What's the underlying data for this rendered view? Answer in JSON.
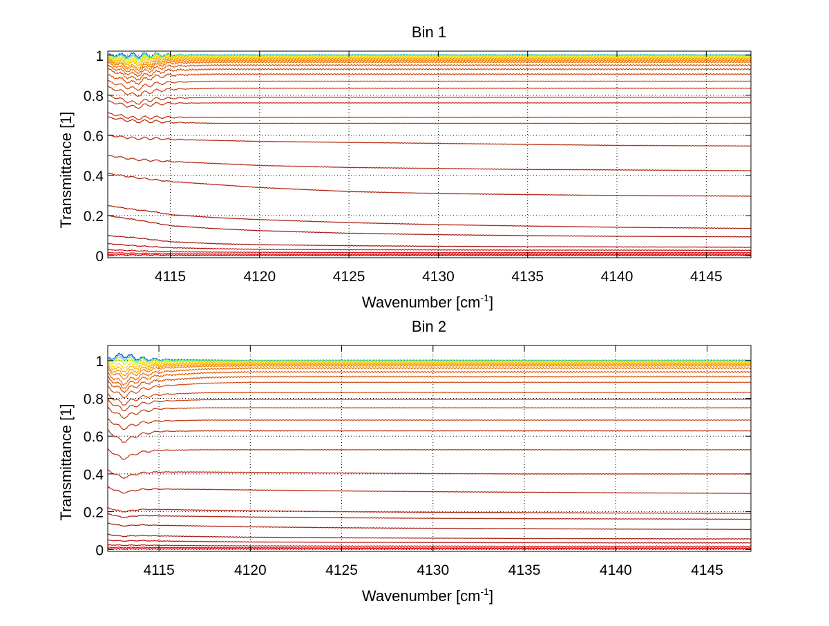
{
  "chart_data": [
    {
      "type": "line",
      "title": "Bin 1",
      "xlabel": "Wavenumber [cm-1]",
      "xlabel_main": "Wavenumber [cm",
      "xlabel_sup": "-1",
      "xlabel_end": "]",
      "ylabel": "Transmittance [1]",
      "xlim": [
        4111.5,
        4147.5
      ],
      "ylim": [
        -0.01,
        1.02
      ],
      "xticks": [
        4115,
        4120,
        4125,
        4130,
        4135,
        4140,
        4145
      ],
      "yticks": [
        0,
        0.2,
        0.4,
        0.6,
        0.8,
        1
      ],
      "xtick_labels": [
        "4115",
        "4120",
        "4125",
        "4130",
        "4135",
        "4140",
        "4145"
      ],
      "ytick_labels": [
        "0",
        "0.2",
        "0.4",
        "0.6",
        "0.8",
        "1"
      ],
      "grid": true,
      "grid_style": "dotted",
      "absorption_center": 4113.4,
      "x": [
        4111.5,
        4113,
        4114,
        4115,
        4117.5,
        4120,
        4125,
        4130,
        4135,
        4140,
        4145,
        4147.5
      ],
      "series": [
        {
          "color": "#1a3fd6",
          "values": [
            1.0,
            1.0,
            1.0,
            1.0,
            1.0,
            1.0,
            1.0,
            1.0,
            1.0,
            1.0,
            1.0,
            1.0
          ]
        },
        {
          "color": "#2fd0ff",
          "values": [
            1.0,
            0.99,
            1.0,
            1.0,
            1.0,
            1.0,
            1.0,
            1.0,
            1.0,
            1.0,
            1.0,
            1.0
          ]
        },
        {
          "color": "#7cff4a",
          "values": [
            0.995,
            0.985,
            0.995,
            0.998,
            0.998,
            0.998,
            0.998,
            0.998,
            0.998,
            0.998,
            0.998,
            0.998
          ]
        },
        {
          "color": "#d8f000",
          "values": [
            0.99,
            0.975,
            0.99,
            0.995,
            0.995,
            0.995,
            0.995,
            0.995,
            0.995,
            0.995,
            0.995,
            0.995
          ]
        },
        {
          "color": "#ffd200",
          "values": [
            0.985,
            0.965,
            0.985,
            0.99,
            0.99,
            0.99,
            0.99,
            0.99,
            0.99,
            0.99,
            0.99,
            0.99
          ]
        },
        {
          "color": "#ffb400",
          "values": [
            0.98,
            0.955,
            0.975,
            0.985,
            0.985,
            0.985,
            0.985,
            0.985,
            0.985,
            0.985,
            0.985,
            0.985
          ]
        },
        {
          "color": "#fa9a00",
          "values": [
            0.975,
            0.94,
            0.965,
            0.978,
            0.98,
            0.98,
            0.98,
            0.98,
            0.98,
            0.98,
            0.98,
            0.98
          ]
        },
        {
          "color": "#f08000",
          "values": [
            0.97,
            0.93,
            0.955,
            0.97,
            0.973,
            0.973,
            0.973,
            0.973,
            0.973,
            0.973,
            0.973,
            0.973
          ]
        },
        {
          "color": "#e86a00",
          "values": [
            0.96,
            0.915,
            0.945,
            0.96,
            0.965,
            0.965,
            0.965,
            0.965,
            0.965,
            0.965,
            0.965,
            0.965
          ]
        },
        {
          "color": "#e05a05",
          "values": [
            0.945,
            0.9,
            0.93,
            0.945,
            0.95,
            0.95,
            0.95,
            0.95,
            0.95,
            0.95,
            0.95,
            0.95
          ]
        },
        {
          "color": "#d85008",
          "values": [
            0.93,
            0.88,
            0.91,
            0.925,
            0.93,
            0.93,
            0.93,
            0.93,
            0.93,
            0.93,
            0.93,
            0.93
          ]
        },
        {
          "color": "#d2480a",
          "values": [
            0.9,
            0.86,
            0.89,
            0.9,
            0.905,
            0.905,
            0.905,
            0.905,
            0.905,
            0.905,
            0.905,
            0.905
          ]
        },
        {
          "color": "#cc420c",
          "values": [
            0.87,
            0.83,
            0.855,
            0.865,
            0.87,
            0.87,
            0.87,
            0.87,
            0.87,
            0.87,
            0.87,
            0.87
          ]
        },
        {
          "color": "#c83c0c",
          "values": [
            0.84,
            0.8,
            0.82,
            0.83,
            0.835,
            0.835,
            0.835,
            0.835,
            0.835,
            0.835,
            0.835,
            0.835
          ]
        },
        {
          "color": "#c4380c",
          "values": [
            0.8,
            0.76,
            0.78,
            0.785,
            0.79,
            0.79,
            0.79,
            0.79,
            0.79,
            0.79,
            0.79,
            0.79
          ]
        },
        {
          "color": "#c0340c",
          "values": [
            0.77,
            0.74,
            0.755,
            0.76,
            0.762,
            0.762,
            0.762,
            0.762,
            0.762,
            0.762,
            0.762,
            0.762
          ]
        },
        {
          "color": "#bc300c",
          "values": [
            0.71,
            0.685,
            0.69,
            0.69,
            0.69,
            0.69,
            0.69,
            0.69,
            0.69,
            0.69,
            0.69,
            0.69
          ]
        },
        {
          "color": "#b82c0c",
          "values": [
            0.69,
            0.67,
            0.67,
            0.665,
            0.66,
            0.66,
            0.66,
            0.66,
            0.66,
            0.66,
            0.66,
            0.66
          ]
        },
        {
          "color": "#b4280c",
          "values": [
            0.6,
            0.585,
            0.585,
            0.58,
            0.575,
            0.57,
            0.565,
            0.56,
            0.555,
            0.55,
            0.548,
            0.547
          ]
        },
        {
          "color": "#b0240c",
          "values": [
            0.5,
            0.48,
            0.475,
            0.47,
            0.46,
            0.45,
            0.44,
            0.435,
            0.43,
            0.428,
            0.425,
            0.424
          ]
        },
        {
          "color": "#ac200c",
          "values": [
            0.41,
            0.39,
            0.38,
            0.37,
            0.355,
            0.34,
            0.32,
            0.31,
            0.305,
            0.3,
            0.298,
            0.297
          ]
        },
        {
          "color": "#a81c0c",
          "values": [
            0.25,
            0.23,
            0.22,
            0.205,
            0.19,
            0.18,
            0.165,
            0.155,
            0.148,
            0.142,
            0.138,
            0.136
          ]
        },
        {
          "color": "#a4180c",
          "values": [
            0.2,
            0.18,
            0.165,
            0.15,
            0.135,
            0.125,
            0.112,
            0.105,
            0.1,
            0.097,
            0.095,
            0.094
          ]
        },
        {
          "color": "#a0140c",
          "values": [
            0.1,
            0.09,
            0.08,
            0.07,
            0.06,
            0.055,
            0.05,
            0.047,
            0.045,
            0.044,
            0.043,
            0.042
          ]
        },
        {
          "color": "#b8100c",
          "values": [
            0.06,
            0.05,
            0.045,
            0.04,
            0.035,
            0.032,
            0.03,
            0.029,
            0.028,
            0.028,
            0.027,
            0.027
          ]
        },
        {
          "color": "#cc0c0c",
          "values": [
            0.03,
            0.025,
            0.022,
            0.02,
            0.018,
            0.017,
            0.016,
            0.015,
            0.015,
            0.015,
            0.015,
            0.015
          ]
        },
        {
          "color": "#d8080c",
          "values": [
            0.015,
            0.012,
            0.011,
            0.01,
            0.009,
            0.008,
            0.008,
            0.008,
            0.008,
            0.008,
            0.008,
            0.008
          ]
        },
        {
          "color": "#e0040c",
          "values": [
            0.005,
            0.004,
            0.004,
            0.003,
            0.003,
            0.003,
            0.003,
            0.003,
            0.003,
            0.003,
            0.003,
            0.003
          ]
        }
      ]
    },
    {
      "type": "line",
      "title": "Bin 2",
      "xlabel": "Wavenumber [cm-1]",
      "xlabel_main": "Wavenumber [cm",
      "xlabel_sup": "-1",
      "xlabel_end": "]",
      "ylabel": "Transmittance [1]",
      "xlim": [
        4112.2,
        4147.4
      ],
      "ylim": [
        -0.01,
        1.08
      ],
      "xticks": [
        4115,
        4120,
        4125,
        4130,
        4135,
        4140,
        4145
      ],
      "yticks": [
        0,
        0.2,
        0.4,
        0.6,
        0.8,
        1
      ],
      "xtick_labels": [
        "4115",
        "4120",
        "4125",
        "4130",
        "4135",
        "4140",
        "4145"
      ],
      "ytick_labels": [
        "0",
        "0.2",
        "0.4",
        "0.6",
        "0.8",
        "1"
      ],
      "grid": true,
      "grid_style": "dotted",
      "absorption_center": 4113.3,
      "x": [
        4112.2,
        4113,
        4114,
        4115,
        4117.5,
        4120,
        4125,
        4130,
        4135,
        4140,
        4145,
        4147.4
      ],
      "series": [
        {
          "color": "#1a3fd6",
          "values": [
            1.01,
            1.03,
            1.01,
            1.005,
            1.002,
            1.0,
            1.0,
            1.0,
            1.0,
            1.0,
            1.0,
            1.0
          ]
        },
        {
          "color": "#2fd0ff",
          "values": [
            1.005,
            1.02,
            1.005,
            1.003,
            1.001,
            1.0,
            1.0,
            1.0,
            1.0,
            1.0,
            1.0,
            1.0
          ]
        },
        {
          "color": "#7cff4a",
          "values": [
            1.0,
            1.01,
            1.0,
            0.998,
            0.998,
            0.998,
            0.998,
            0.998,
            0.998,
            0.998,
            0.998,
            0.998
          ]
        },
        {
          "color": "#d8f000",
          "values": [
            0.99,
            0.995,
            0.99,
            0.993,
            0.995,
            0.995,
            0.995,
            0.995,
            0.995,
            0.995,
            0.995,
            0.995
          ]
        },
        {
          "color": "#ffd200",
          "values": [
            0.98,
            0.97,
            0.98,
            0.985,
            0.99,
            0.99,
            0.99,
            0.99,
            0.99,
            0.99,
            0.99,
            0.99
          ]
        },
        {
          "color": "#ffb400",
          "values": [
            0.97,
            0.95,
            0.97,
            0.978,
            0.985,
            0.985,
            0.985,
            0.985,
            0.985,
            0.985,
            0.985,
            0.985
          ]
        },
        {
          "color": "#fa9a00",
          "values": [
            0.96,
            0.93,
            0.955,
            0.97,
            0.978,
            0.98,
            0.98,
            0.98,
            0.98,
            0.98,
            0.98,
            0.98
          ]
        },
        {
          "color": "#f08000",
          "values": [
            0.95,
            0.91,
            0.94,
            0.96,
            0.97,
            0.972,
            0.972,
            0.972,
            0.972,
            0.972,
            0.972,
            0.972
          ]
        },
        {
          "color": "#e86a00",
          "values": [
            0.93,
            0.88,
            0.92,
            0.94,
            0.955,
            0.96,
            0.96,
            0.96,
            0.96,
            0.96,
            0.96,
            0.96
          ]
        },
        {
          "color": "#e05a05",
          "values": [
            0.91,
            0.86,
            0.9,
            0.92,
            0.935,
            0.94,
            0.94,
            0.94,
            0.94,
            0.94,
            0.94,
            0.94
          ]
        },
        {
          "color": "#d85008",
          "values": [
            0.89,
            0.84,
            0.875,
            0.895,
            0.91,
            0.915,
            0.915,
            0.915,
            0.915,
            0.915,
            0.915,
            0.915
          ]
        },
        {
          "color": "#d2480a",
          "values": [
            0.86,
            0.81,
            0.845,
            0.865,
            0.88,
            0.885,
            0.885,
            0.885,
            0.885,
            0.885,
            0.885,
            0.885
          ]
        },
        {
          "color": "#cc420c",
          "values": [
            0.82,
            0.77,
            0.805,
            0.82,
            0.83,
            0.832,
            0.832,
            0.832,
            0.832,
            0.832,
            0.832,
            0.832
          ]
        },
        {
          "color": "#c83c0c",
          "values": [
            0.79,
            0.74,
            0.77,
            0.785,
            0.793,
            0.795,
            0.795,
            0.795,
            0.795,
            0.795,
            0.795,
            0.795
          ]
        },
        {
          "color": "#c4380c",
          "values": [
            0.75,
            0.7,
            0.73,
            0.745,
            0.75,
            0.75,
            0.75,
            0.75,
            0.75,
            0.75,
            0.75,
            0.75
          ]
        },
        {
          "color": "#c0340c",
          "values": [
            0.69,
            0.64,
            0.67,
            0.68,
            0.685,
            0.685,
            0.685,
            0.685,
            0.685,
            0.685,
            0.685,
            0.685
          ]
        },
        {
          "color": "#bc300c",
          "values": [
            0.63,
            0.57,
            0.61,
            0.625,
            0.628,
            0.628,
            0.628,
            0.628,
            0.628,
            0.628,
            0.628,
            0.628
          ]
        },
        {
          "color": "#b82c0c",
          "values": [
            0.53,
            0.48,
            0.515,
            0.525,
            0.528,
            0.528,
            0.528,
            0.528,
            0.528,
            0.528,
            0.528,
            0.528
          ]
        },
        {
          "color": "#b4280c",
          "values": [
            0.42,
            0.38,
            0.405,
            0.41,
            0.41,
            0.408,
            0.405,
            0.402,
            0.4,
            0.4,
            0.4,
            0.4
          ]
        },
        {
          "color": "#b0240c",
          "values": [
            0.33,
            0.3,
            0.318,
            0.32,
            0.318,
            0.315,
            0.31,
            0.306,
            0.303,
            0.3,
            0.298,
            0.297
          ]
        },
        {
          "color": "#ac200c",
          "values": [
            0.22,
            0.2,
            0.212,
            0.212,
            0.208,
            0.205,
            0.2,
            0.197,
            0.195,
            0.193,
            0.192,
            0.191
          ]
        },
        {
          "color": "#a81c0c",
          "values": [
            0.19,
            0.17,
            0.18,
            0.178,
            0.175,
            0.172,
            0.168,
            0.165,
            0.163,
            0.162,
            0.161,
            0.16
          ]
        },
        {
          "color": "#a4180c",
          "values": [
            0.14,
            0.125,
            0.13,
            0.128,
            0.124,
            0.12,
            0.115,
            0.112,
            0.11,
            0.108,
            0.107,
            0.106
          ]
        },
        {
          "color": "#a0140c",
          "values": [
            0.08,
            0.07,
            0.074,
            0.072,
            0.068,
            0.065,
            0.062,
            0.06,
            0.058,
            0.057,
            0.056,
            0.056
          ]
        },
        {
          "color": "#b8100c",
          "values": [
            0.05,
            0.045,
            0.047,
            0.045,
            0.042,
            0.04,
            0.038,
            0.037,
            0.036,
            0.035,
            0.035,
            0.035
          ]
        },
        {
          "color": "#cc0c0c",
          "values": [
            0.025,
            0.022,
            0.023,
            0.022,
            0.02,
            0.019,
            0.018,
            0.018,
            0.017,
            0.017,
            0.017,
            0.017
          ]
        },
        {
          "color": "#d8080c",
          "values": [
            0.012,
            0.01,
            0.011,
            0.01,
            0.009,
            0.009,
            0.008,
            0.008,
            0.008,
            0.008,
            0.008,
            0.008
          ]
        },
        {
          "color": "#e0040c",
          "values": [
            0.004,
            0.003,
            0.004,
            0.003,
            0.003,
            0.003,
            0.003,
            0.003,
            0.003,
            0.003,
            0.003,
            0.003
          ]
        }
      ]
    }
  ]
}
